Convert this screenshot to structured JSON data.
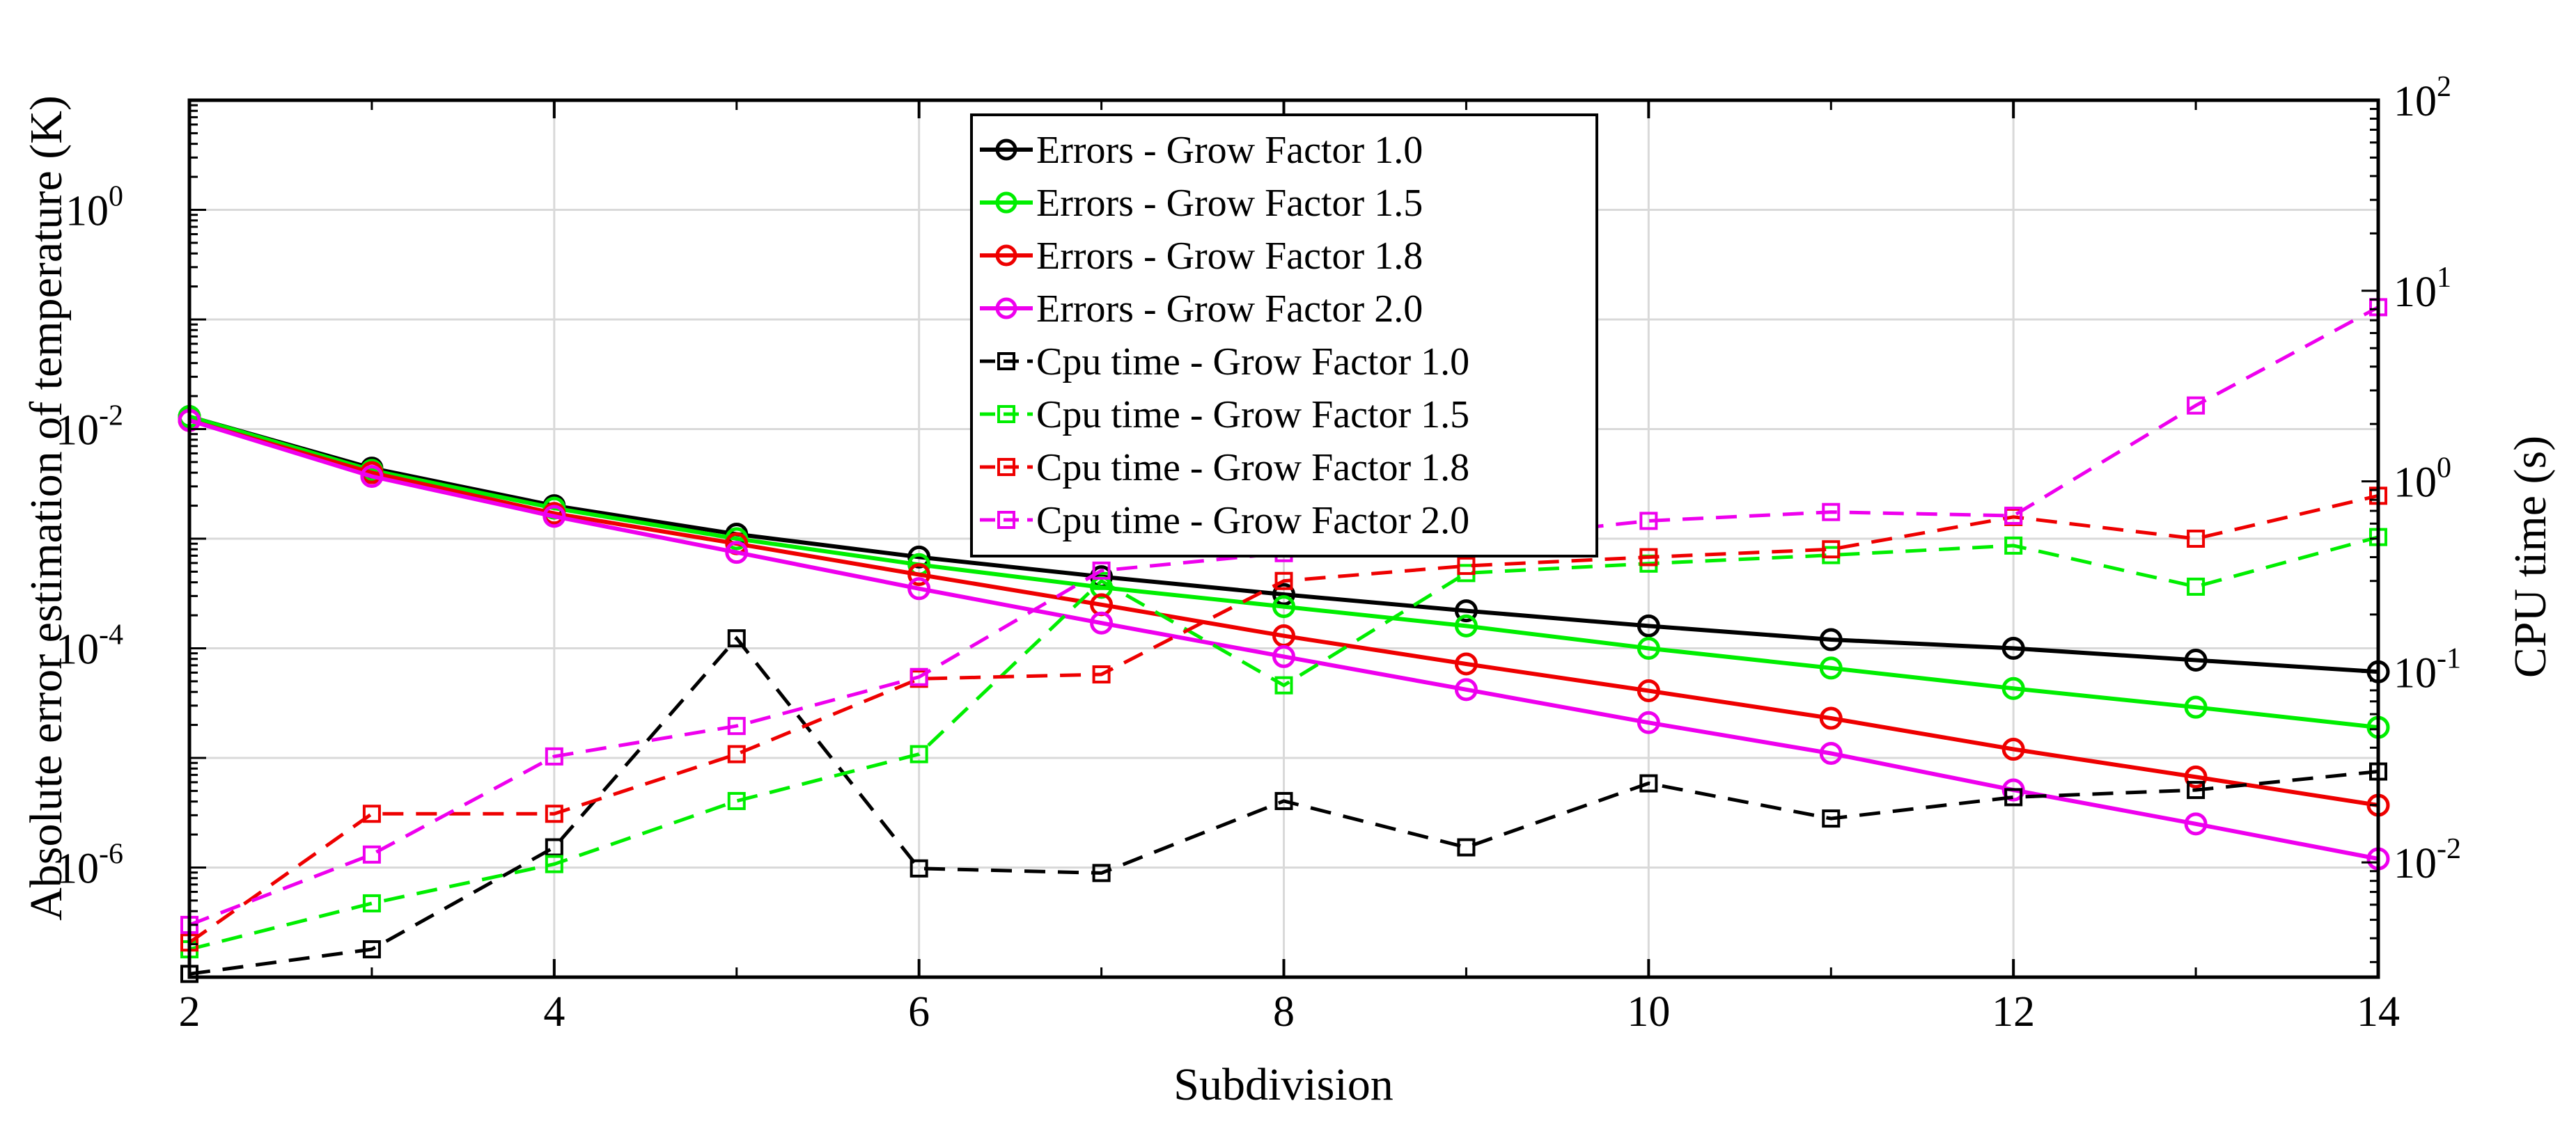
{
  "chart_data": {
    "type": "line",
    "xlabel": "Subdivision",
    "ylabel": "Absolute error estimation of temperature (K)",
    "y2label": "CPU time (s)",
    "xlim": [
      2,
      14
    ],
    "xticks": [
      2,
      4,
      6,
      8,
      10,
      12,
      14
    ],
    "ylim": [
      1e-07,
      10
    ],
    "yscale": "log",
    "yticks": [
      {
        "base": "10",
        "exp": "0",
        "value": 1
      },
      {
        "base": "10",
        "exp": "-2",
        "value": 0.01
      },
      {
        "base": "10",
        "exp": "-4",
        "value": 0.0001
      },
      {
        "base": "10",
        "exp": "-6",
        "value": 1e-06
      }
    ],
    "y2lim": [
      0.0025,
      100
    ],
    "y2scale": "log",
    "y2ticks": [
      {
        "base": "10",
        "exp": "2",
        "value": 100
      },
      {
        "base": "10",
        "exp": "1",
        "value": 10
      },
      {
        "base": "10",
        "exp": "0",
        "value": 1
      },
      {
        "base": "10",
        "exp": "-1",
        "value": 0.1
      },
      {
        "base": "10",
        "exp": "-2",
        "value": 0.01
      }
    ],
    "grid": true,
    "legend_position": "top-center",
    "x": [
      2,
      3,
      4,
      5,
      6,
      7,
      8,
      9,
      10,
      11,
      12,
      13,
      14
    ],
    "series": [
      {
        "name": "Errors - Grow Factor 1.0",
        "axis": "left",
        "color": "#000000",
        "marker": "circle",
        "dash": false,
        "values": [
          0.013,
          0.0044,
          0.002,
          0.0011,
          0.00068,
          0.00045,
          0.00031,
          0.00022,
          0.00016,
          0.00012,
          0.0001,
          7.8e-05,
          6.1e-05
        ]
      },
      {
        "name": "Errors - Grow Factor 1.5",
        "axis": "left",
        "color": "#00ee00",
        "marker": "circle",
        "dash": false,
        "values": [
          0.013,
          0.0042,
          0.0019,
          0.001,
          0.00058,
          0.00036,
          0.00024,
          0.00016,
          0.0001,
          6.6e-05,
          4.3e-05,
          2.9e-05,
          1.9e-05
        ]
      },
      {
        "name": "Errors - Grow Factor 1.8",
        "axis": "left",
        "color": "#ee0000",
        "marker": "circle",
        "dash": false,
        "values": [
          0.012,
          0.004,
          0.0017,
          0.0009,
          0.00047,
          0.00025,
          0.00013,
          7.2e-05,
          4.1e-05,
          2.3e-05,
          1.2e-05,
          6.7e-06,
          3.7e-06
        ]
      },
      {
        "name": "Errors - Grow Factor 2.0",
        "axis": "left",
        "color": "#ee00ee",
        "marker": "circle",
        "dash": false,
        "values": [
          0.012,
          0.0037,
          0.0016,
          0.00075,
          0.00035,
          0.00017,
          8.4e-05,
          4.2e-05,
          2.1e-05,
          1.1e-05,
          5.1e-06,
          2.5e-06,
          1.2e-06
        ]
      },
      {
        "name": "Cpu time - Grow Factor 1.0",
        "axis": "right",
        "color": "#000000",
        "marker": "square",
        "dash": true,
        "values": [
          0.0026,
          0.0035,
          0.012,
          0.15,
          0.0093,
          0.0088,
          0.021,
          0.012,
          0.026,
          0.017,
          0.022,
          0.024,
          0.03
        ]
      },
      {
        "name": "Cpu time - Grow Factor 1.5",
        "axis": "right",
        "color": "#00ee00",
        "marker": "square",
        "dash": true,
        "values": [
          0.0035,
          0.0061,
          0.0098,
          0.021,
          0.037,
          0.3,
          0.085,
          0.33,
          0.37,
          0.41,
          0.46,
          0.28,
          0.51
        ]
      },
      {
        "name": "Cpu time - Grow Factor 1.8",
        "axis": "right",
        "color": "#ee0000",
        "marker": "square",
        "dash": true,
        "values": [
          0.0038,
          0.018,
          0.018,
          0.037,
          0.092,
          0.097,
          0.3,
          0.36,
          0.4,
          0.44,
          0.65,
          0.5,
          0.84
        ]
      },
      {
        "name": "Cpu time - Grow Factor 2.0",
        "axis": "right",
        "color": "#ee00ee",
        "marker": "square",
        "dash": true,
        "values": [
          0.0047,
          0.011,
          0.036,
          0.052,
          0.094,
          0.34,
          0.42,
          0.49,
          0.62,
          0.69,
          0.66,
          2.5,
          8.2
        ]
      }
    ]
  }
}
